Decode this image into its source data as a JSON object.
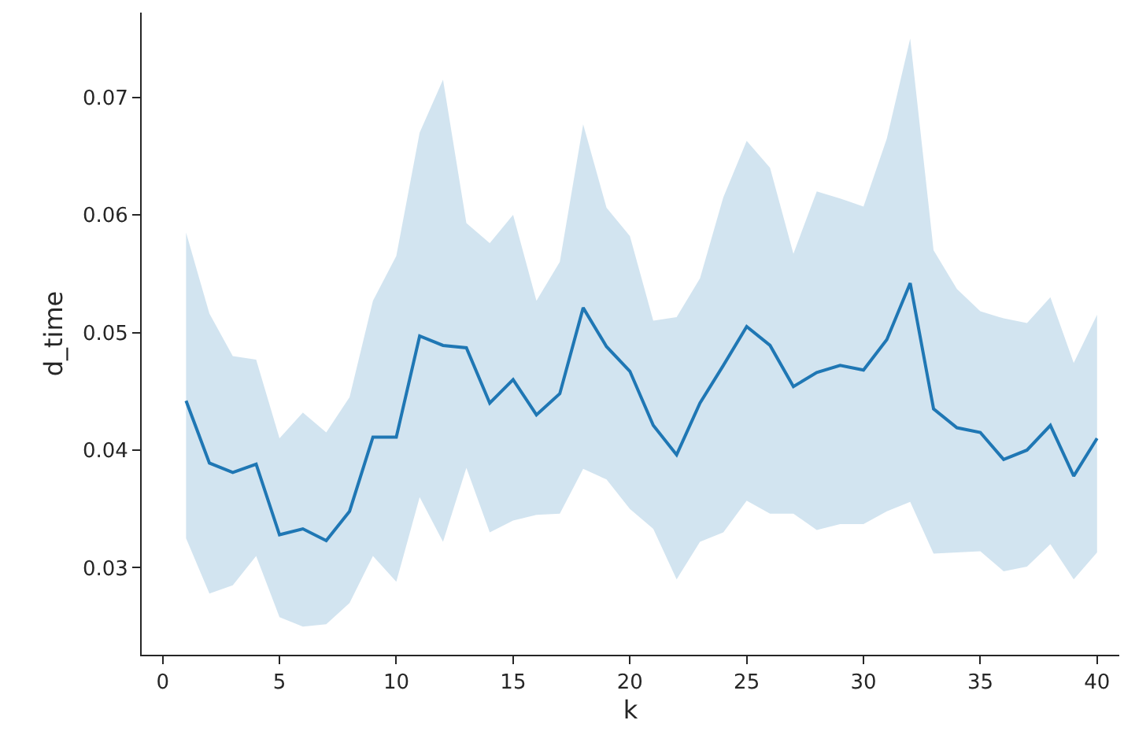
{
  "chart_data": {
    "type": "line",
    "xlabel": "k",
    "ylabel": "d_time",
    "x": [
      1,
      2,
      3,
      4,
      5,
      6,
      7,
      8,
      9,
      10,
      11,
      12,
      13,
      14,
      15,
      16,
      17,
      18,
      19,
      20,
      21,
      22,
      23,
      24,
      25,
      26,
      27,
      28,
      29,
      30,
      31,
      32,
      33,
      34,
      35,
      36,
      37,
      38,
      39,
      40
    ],
    "series": [
      {
        "color": "#1f77b4",
        "values": [
          0.0442,
          0.0389,
          0.0381,
          0.0388,
          0.0328,
          0.0333,
          0.0323,
          0.0348,
          0.0411,
          0.0411,
          0.0497,
          0.0489,
          0.0487,
          0.044,
          0.046,
          0.043,
          0.0448,
          0.0521,
          0.0488,
          0.0467,
          0.0421,
          0.0396,
          0.044,
          0.0472,
          0.0505,
          0.0489,
          0.0454,
          0.0466,
          0.0472,
          0.0468,
          0.0494,
          0.0542,
          0.0435,
          0.0419,
          0.0415,
          0.0392,
          0.04,
          0.0421,
          0.0378,
          0.041
        ],
        "upper": [
          0.0585,
          0.0516,
          0.048,
          0.0477,
          0.041,
          0.0432,
          0.0415,
          0.0445,
          0.0527,
          0.0565,
          0.067,
          0.0715,
          0.0593,
          0.0576,
          0.06,
          0.0527,
          0.056,
          0.0677,
          0.0606,
          0.0582,
          0.051,
          0.0513,
          0.0546,
          0.0615,
          0.0663,
          0.064,
          0.0567,
          0.062,
          0.0614,
          0.0607,
          0.0665,
          0.075,
          0.057,
          0.0537,
          0.0518,
          0.0512,
          0.0508,
          0.053,
          0.0474,
          0.0515
        ],
        "lower": [
          0.0325,
          0.0278,
          0.0285,
          0.031,
          0.0258,
          0.025,
          0.0252,
          0.027,
          0.031,
          0.0288,
          0.036,
          0.0322,
          0.0385,
          0.033,
          0.034,
          0.0345,
          0.0346,
          0.0384,
          0.0375,
          0.035,
          0.0333,
          0.029,
          0.0322,
          0.033,
          0.0357,
          0.0346,
          0.0346,
          0.0332,
          0.0337,
          0.0337,
          0.0348,
          0.0356,
          0.0312,
          0.0313,
          0.0314,
          0.0297,
          0.0301,
          0.032,
          0.029,
          0.0313
        ]
      }
    ],
    "xlim": [
      -0.9,
      40.95
    ],
    "xticks": [
      0,
      5,
      10,
      15,
      20,
      25,
      30,
      35,
      40
    ],
    "ylim": [
      0.0226,
      0.0772
    ],
    "yticks": [
      0.03,
      0.04,
      0.05,
      0.06,
      0.07
    ],
    "grid": false,
    "marker": "none",
    "line_style": "solid"
  }
}
